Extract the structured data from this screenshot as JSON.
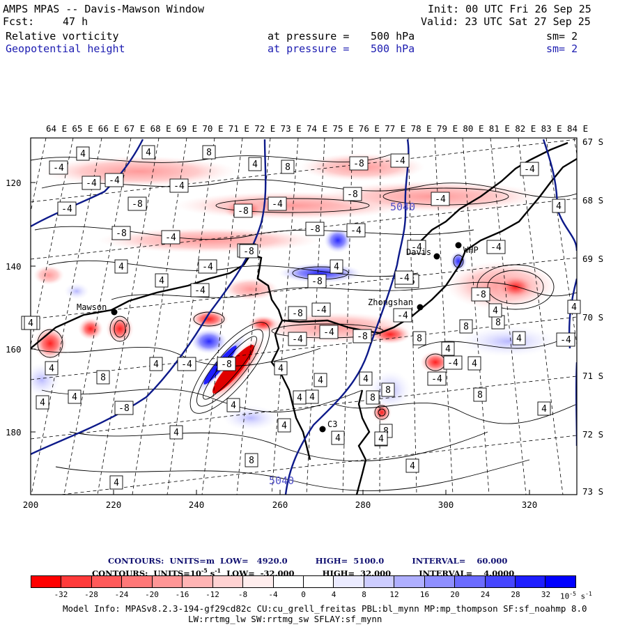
{
  "header": {
    "title": "AMPS MPAS -- Davis-Mawson Window",
    "fcst_label": "Fcst:",
    "fcst_value": "47 h",
    "init": "Init: 00 UTC Fri 26 Sep 25",
    "valid": "Valid: 23 UTC Sat 27 Sep 25",
    "field1_name": "Relative vorticity",
    "field1_level_label": "at pressure =",
    "field1_level_value": "500 hPa",
    "field1_sm": "sm= 2",
    "field2_name": "Geopotential height",
    "field2_level_label": "at pressure =",
    "field2_level_value": "500 hPa",
    "field2_sm": "sm= 2"
  },
  "longitudes": [
    "64 E",
    "65 E",
    "66 E",
    "67 E",
    "68 E",
    "69 E",
    "70 E",
    "71 E",
    "72 E",
    "73 E",
    "74 E",
    "75 E",
    "76 E",
    "77 E",
    "78 E",
    "79 E",
    "80 E",
    "81 E",
    "82 E",
    "83 E",
    "84 E"
  ],
  "latitudes": [
    "67 S",
    "68 S",
    "69 S",
    "70 S",
    "71 S",
    "72 S",
    "73 S"
  ],
  "x_ticks": [
    "200",
    "220",
    "240",
    "260",
    "280",
    "300",
    "320"
  ],
  "y_ticks": [
    "120",
    "140",
    "160",
    "180"
  ],
  "stations": [
    {
      "name": "Mawson"
    },
    {
      "name": "Davis"
    },
    {
      "name": "WHP"
    },
    {
      "name": "Zhongshan"
    },
    {
      "name": "C3"
    }
  ],
  "height_contour_labels": [
    "5040",
    "5040"
  ],
  "vort_labels": [
    "4",
    "-4",
    "-4",
    "-4",
    "-4",
    "-4",
    "-8",
    "-8",
    "-4",
    "-8",
    "-4",
    "-4",
    "-8",
    "-8",
    "-8",
    "-4",
    "-8",
    "-4",
    "-4",
    "-4",
    "-4",
    "-8",
    "-8",
    "4",
    "4",
    "-4",
    "4",
    "-8",
    "-4",
    "-8",
    "-4",
    "-4",
    "-8",
    "-4",
    "-16",
    "-4",
    "-8",
    "4",
    "8",
    "4",
    "-4",
    "-4",
    "4",
    "8",
    "-8",
    "4",
    "4",
    "8",
    "8",
    "-4",
    "4",
    "8",
    "4",
    "-4",
    "4",
    "4",
    "8",
    "8",
    "8",
    "8",
    "4",
    "4",
    "4",
    "4",
    "4",
    "4",
    "8",
    "4",
    "4",
    "8",
    "4",
    "-4",
    "4",
    "4",
    "4",
    "4",
    "4",
    "4",
    "-4",
    "4",
    "8",
    "4",
    "4"
  ],
  "legend": {
    "height_contours": "CONTOURS:  UNITS=m  LOW=   4920.0          HIGH=  5100.0          INTERVAL=    60.000",
    "vort_contours": "CONTOURS:  UNITS=10",
    "vort_exp": "-5",
    "vort_units_tail": " s",
    "vort_units_exp": "-1",
    "vort_rest": "  LOW=  -32.000          HIGH=  32.000          INTERVAL=    4.0000",
    "colorbar_values": [
      "-32",
      "-28",
      "-24",
      "-20",
      "-16",
      "-12",
      "-8",
      "-4",
      "0",
      "4",
      "8",
      "12",
      "16",
      "20",
      "24",
      "28",
      "32"
    ],
    "colorbar_colors": [
      "#ff0000",
      "#ff3a3a",
      "#ff5a5a",
      "#ff7878",
      "#ff9696",
      "#ffb4b4",
      "#ffd2d2",
      "#ffeded",
      "#ffffff",
      "#ffffff",
      "#ebebff",
      "#cdcdff",
      "#afafff",
      "#8f8fff",
      "#6b6bff",
      "#4646ff",
      "#1e1eff",
      "#0000ff"
    ],
    "colorbar_units": "10",
    "colorbar_units_exp": "-5",
    "colorbar_units_tail": " s",
    "colorbar_units_exp2": "-1"
  },
  "model_info_line1": "Model Info: MPASv8.2.3-194-gf29cd82c CU:cu_grell_freitas PBL:bl_mynn MP:mp_thompson SF:sf_noahmp 8.0",
  "model_info_line2": "LW:rrtmg_lw SW:rrtmg_sw SFLAY:sf_mynn"
}
